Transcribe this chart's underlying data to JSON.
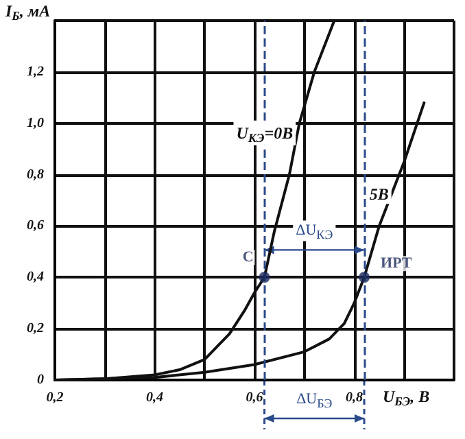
{
  "chart_data": {
    "type": "line",
    "xlabel": "U$_{БЭ}$, В",
    "ylabel": "I$_{Б}$, мА",
    "xlim": [
      0.2,
      1.0
    ],
    "xticks": [
      {
        "value": 0.2,
        "label": "0,2"
      },
      {
        "value": 0.3,
        "label": null
      },
      {
        "value": 0.4,
        "label": "0,4"
      },
      {
        "value": 0.5,
        "label": null
      },
      {
        "value": 0.6,
        "label": "0,6"
      },
      {
        "value": 0.7,
        "label": null
      },
      {
        "value": 0.8,
        "label": "0,8"
      },
      {
        "value": 0.9,
        "label": null
      },
      {
        "value": 1.0,
        "label": null
      }
    ],
    "ylim": [
      0,
      1.4
    ],
    "yticks": [
      0,
      {
        "value": 0.2,
        "label": "0,2"
      },
      {
        "value": 0.4,
        "label": "0,4"
      },
      {
        "value": 0.6,
        "label": "0,6"
      },
      {
        "value": 0.8,
        "label": "0,8"
      },
      {
        "value": 1.0,
        "label": "1,0"
      },
      {
        "value": 1.2,
        "label": "1,2"
      },
      {
        "value": 1.4,
        "label": null
      }
    ],
    "grid": true,
    "line_style": "solid",
    "marker": "none",
    "series": [
      {
        "name": "U$_{КЭ}$=0В",
        "color": "#111111",
        "x": [
          0.2,
          0.3,
          0.4,
          0.45,
          0.5,
          0.55,
          0.58,
          0.6,
          0.62,
          0.64,
          0.67,
          0.69,
          0.72,
          0.76
        ],
        "values": [
          0,
          0.005,
          0.02,
          0.04,
          0.08,
          0.18,
          0.27,
          0.34,
          0.4,
          0.58,
          0.8,
          1.0,
          1.2,
          1.4
        ]
      },
      {
        "name": "5В",
        "color": "#111111",
        "x": [
          0.2,
          0.4,
          0.5,
          0.6,
          0.7,
          0.75,
          0.78,
          0.8,
          0.82,
          0.85,
          0.88,
          0.9,
          0.94
        ],
        "values": [
          0,
          0.01,
          0.03,
          0.06,
          0.11,
          0.16,
          0.22,
          0.3,
          0.4,
          0.6,
          0.75,
          0.85,
          1.08
        ]
      },
      {
        "type": "scatter",
        "marker": "circle",
        "color": "#1c2a5c",
        "x": [
          0.62,
          0.82
        ],
        "values": [
          0.4,
          0.4
        ],
        "value_labels": [
          "C",
          "ИРТ"
        ]
      }
    ],
    "ref_lines": [
      {
        "axis": "x",
        "value": 0.62,
        "color": "#2a4a8a",
        "line_style": "dashed"
      },
      {
        "axis": "x",
        "value": 0.82,
        "color": "#2a4a8a",
        "line_style": "dashed"
      }
    ],
    "annotations": [
      "ΔU$_{КЭ}$",
      "ΔU$_{БЭ}$"
    ]
  }
}
